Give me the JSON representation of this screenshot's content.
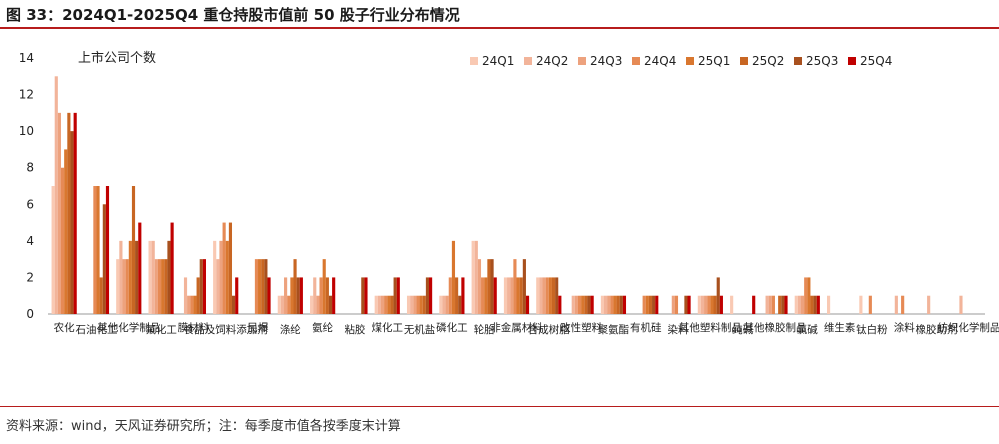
{
  "figure": {
    "title": "图 33：2024Q1-2025Q4 重仓持股市值前 50 股子行业分布情况",
    "source": "资料来源：wind，天风证券研究所；注：每季度市值各按季度末计算"
  },
  "colors": [
    "#f9c9b3",
    "#f2b49a",
    "#eda27e",
    "#e68a55",
    "#d9772f",
    "#c86623",
    "#a8501e",
    "#c00000"
  ],
  "chart_data": {
    "type": "bar",
    "title": "",
    "ylabel": "上市公司个数",
    "xlabel": "",
    "ylim": [
      0,
      14
    ],
    "yticks": [
      0,
      2,
      4,
      6,
      8,
      10,
      12,
      14
    ],
    "legend_position": "top-right",
    "grid": false,
    "categories": [
      "农化",
      "石油化工",
      "其他化学制品",
      "氟化工",
      "膜材料",
      "食品及饲料添加剂",
      "民爆",
      "涤纶",
      "氨纶",
      "粘胶",
      "煤化工",
      "无机盐",
      "磷化工",
      "轮胎",
      "非金属材料",
      "合成树脂",
      "改性塑料",
      "聚氨酯",
      "有机硅",
      "染料",
      "其他塑料制品",
      "纯碱",
      "其他橡胶制品",
      "氯碱",
      "维生素",
      "钛白粉",
      "涂料",
      "橡胶助剂",
      "纺织化学制品"
    ],
    "series": [
      {
        "name": "24Q1",
        "values": [
          7,
          0,
          3,
          4,
          0,
          4,
          0,
          1,
          1,
          0,
          1,
          1,
          1,
          4,
          2,
          2,
          0,
          1,
          0,
          0,
          1,
          1,
          0,
          1,
          1,
          1,
          0,
          0,
          0
        ]
      },
      {
        "name": "24Q2",
        "values": [
          13,
          0,
          4,
          4,
          2,
          3,
          0,
          1,
          2,
          0,
          1,
          1,
          1,
          4,
          2,
          2,
          1,
          1,
          0,
          0,
          1,
          0,
          1,
          1,
          0,
          0,
          1,
          1,
          1
        ]
      },
      {
        "name": "24Q3",
        "values": [
          11,
          0,
          3,
          3,
          1,
          4,
          0,
          2,
          1,
          0,
          1,
          1,
          1,
          3,
          2,
          2,
          1,
          1,
          0,
          1,
          1,
          0,
          1,
          1,
          0,
          0,
          0,
          0,
          0
        ]
      },
      {
        "name": "24Q4",
        "values": [
          8,
          7,
          3,
          3,
          1,
          5,
          3,
          1,
          2,
          0,
          1,
          1,
          2,
          2,
          3,
          2,
          1,
          1,
          1,
          1,
          1,
          0,
          1,
          2,
          0,
          1,
          1,
          0,
          0
        ]
      },
      {
        "name": "25Q1",
        "values": [
          9,
          7,
          4,
          3,
          1,
          4,
          3,
          2,
          3,
          0,
          1,
          1,
          4,
          2,
          2,
          2,
          1,
          1,
          1,
          0,
          1,
          0,
          0,
          2,
          0,
          0,
          0,
          0,
          0
        ]
      },
      {
        "name": "25Q2",
        "values": [
          11,
          2,
          7,
          3,
          2,
          5,
          3,
          3,
          2,
          0,
          1,
          1,
          2,
          3,
          2,
          2,
          1,
          1,
          1,
          0,
          1,
          0,
          1,
          1,
          0,
          0,
          0,
          0,
          0
        ]
      },
      {
        "name": "25Q3",
        "values": [
          10,
          6,
          4,
          4,
          3,
          1,
          3,
          2,
          1,
          2,
          2,
          2,
          1,
          3,
          3,
          2,
          1,
          1,
          1,
          1,
          2,
          0,
          1,
          1,
          0,
          0,
          0,
          0,
          0
        ]
      },
      {
        "name": "25Q4",
        "values": [
          11,
          7,
          5,
          5,
          3,
          2,
          2,
          2,
          2,
          2,
          2,
          2,
          2,
          2,
          1,
          1,
          1,
          1,
          1,
          1,
          1,
          1,
          1,
          1,
          0,
          0,
          0,
          0,
          0
        ]
      }
    ]
  }
}
